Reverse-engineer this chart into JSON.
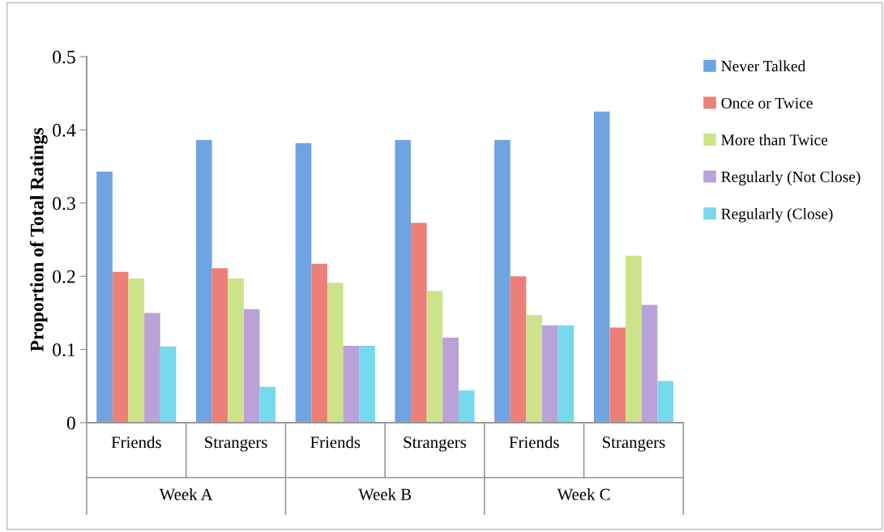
{
  "chart_data": {
    "type": "bar",
    "ylabel": "Proportion of Total Ratings",
    "categories": [
      "Friends",
      "Strangers",
      "Friends",
      "Strangers",
      "Friends",
      "Strangers"
    ],
    "annotations": [
      "Week A",
      "Week B",
      "Week C"
    ],
    "series": [
      {
        "name": "Never Talked",
        "color": "#6fa3e2",
        "values": [
          0.343,
          0.386,
          0.382,
          0.386,
          0.386,
          0.425
        ]
      },
      {
        "name": "Once or Twice",
        "color": "#ec7f77",
        "values": [
          0.206,
          0.211,
          0.217,
          0.273,
          0.2,
          0.13
        ]
      },
      {
        "name": "More than Twice",
        "color": "#cde38a",
        "values": [
          0.197,
          0.197,
          0.191,
          0.18,
          0.147,
          0.228
        ]
      },
      {
        "name": "Regularly (Not Close)",
        "color": "#b8a2d8",
        "values": [
          0.15,
          0.155,
          0.105,
          0.116,
          0.133,
          0.161
        ]
      },
      {
        "name": "Regularly (Close)",
        "color": "#76d9ed",
        "values": [
          0.104,
          0.049,
          0.105,
          0.044,
          0.133,
          0.057
        ]
      }
    ],
    "ylim": [
      0,
      0.5
    ],
    "yticks": [
      0,
      0.1,
      0.2,
      0.3,
      0.4,
      0.5
    ],
    "grid": false,
    "legend": "right"
  }
}
